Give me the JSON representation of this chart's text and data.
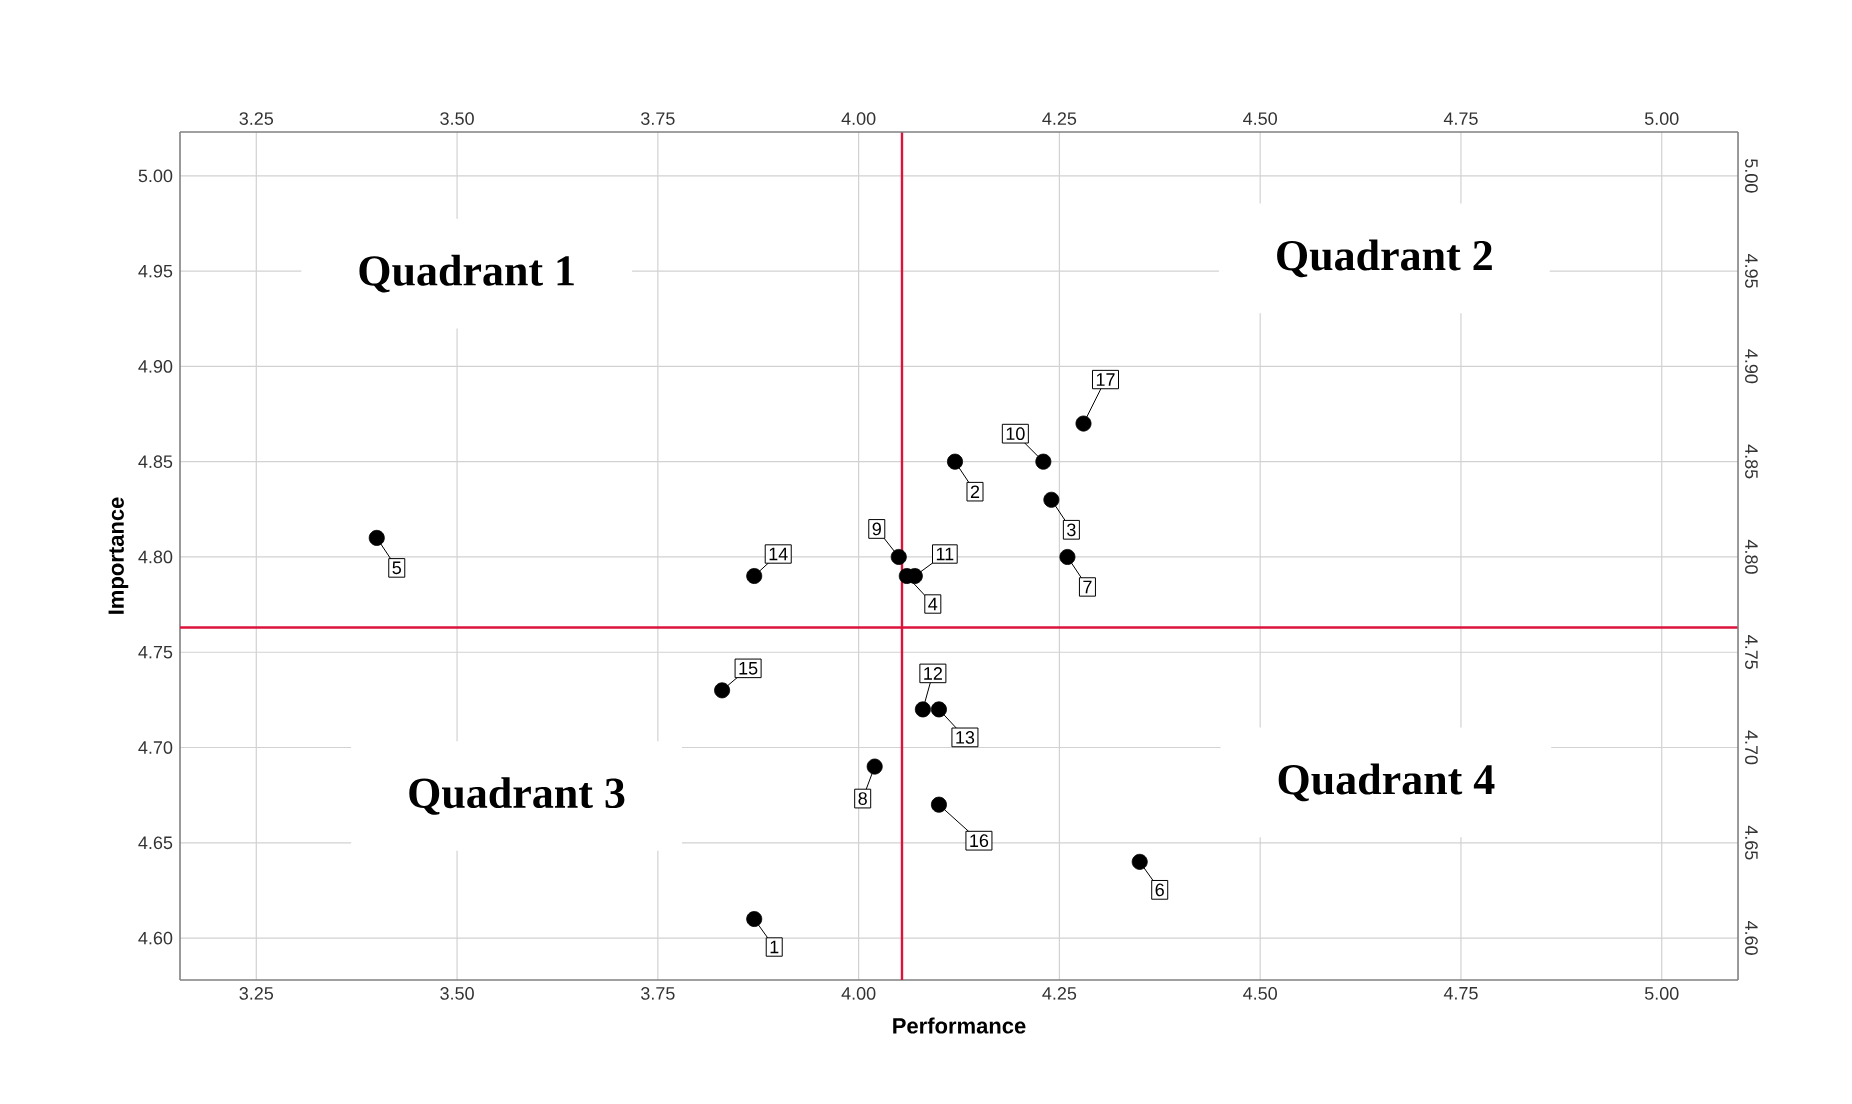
{
  "chart_data": {
    "type": "scatter",
    "xlabel": "Performance",
    "ylabel": "Importance",
    "xlim": [
      3.155,
      5.095
    ],
    "ylim": [
      4.578,
      5.023
    ],
    "x2lim": [
      3.155,
      5.095
    ],
    "y2lim": [
      4.578,
      5.023
    ],
    "xticks": [
      {
        "value": 3.25,
        "label": "3.25"
      },
      {
        "value": 3.5,
        "label": "3.50"
      },
      {
        "value": 3.75,
        "label": "3.75"
      },
      {
        "value": 4.0,
        "label": "4.00"
      },
      {
        "value": 4.25,
        "label": "4.25"
      },
      {
        "value": 4.5,
        "label": "4.50"
      },
      {
        "value": 4.75,
        "label": "4.75"
      },
      {
        "value": 5.0,
        "label": "5.00"
      }
    ],
    "x2ticks": [
      {
        "value": 3.25,
        "label": "3.25"
      },
      {
        "value": 3.5,
        "label": "3.50"
      },
      {
        "value": 3.75,
        "label": "3.75"
      },
      {
        "value": 4.0,
        "label": "4.00"
      },
      {
        "value": 4.25,
        "label": "4.25"
      },
      {
        "value": 4.5,
        "label": "4.50"
      },
      {
        "value": 4.75,
        "label": "4.75"
      },
      {
        "value": 5.0,
        "label": "5.00"
      }
    ],
    "yticks": [
      {
        "value": 4.6,
        "label": "4.60"
      },
      {
        "value": 4.65,
        "label": "4.65"
      },
      {
        "value": 4.7,
        "label": "4.70"
      },
      {
        "value": 4.75,
        "label": "4.75"
      },
      {
        "value": 4.8,
        "label": "4.80"
      },
      {
        "value": 4.85,
        "label": "4.85"
      },
      {
        "value": 4.9,
        "label": "4.90"
      },
      {
        "value": 4.95,
        "label": "4.95"
      },
      {
        "value": 5.0,
        "label": "5.00"
      }
    ],
    "y2ticks": [
      {
        "value": 4.6,
        "label": "4.60"
      },
      {
        "value": 4.65,
        "label": "4.65"
      },
      {
        "value": 4.7,
        "label": "4.70"
      },
      {
        "value": 4.75,
        "label": "4.75"
      },
      {
        "value": 4.8,
        "label": "4.80"
      },
      {
        "value": 4.85,
        "label": "4.85"
      },
      {
        "value": 4.9,
        "label": "4.90"
      },
      {
        "value": 4.95,
        "label": "4.95"
      },
      {
        "value": 5.0,
        "label": "5.00"
      }
    ],
    "grid": true,
    "series": [
      {
        "color": "#000000",
        "x": [
          3.87,
          4.12,
          4.24,
          4.06,
          3.4,
          4.35,
          4.26,
          4.02,
          4.05,
          4.23,
          4.07,
          4.08,
          4.1,
          3.87,
          3.83,
          4.1,
          4.28
        ],
        "values": [
          4.61,
          4.85,
          4.83,
          4.79,
          4.81,
          4.64,
          4.8,
          4.69,
          4.8,
          4.85,
          4.79,
          4.72,
          4.72,
          4.79,
          4.73,
          4.67,
          4.87
        ]
      }
    ],
    "ref_lines": [
      {
        "axis": "x",
        "value": 4.054,
        "color": "#dc143c"
      },
      {
        "axis": "y",
        "value": 4.763,
        "color": "#dc143c"
      }
    ],
    "annotations": [
      "Quadrant 1",
      "Quadrant 2",
      "Quadrant 3",
      "Quadrant 4",
      {
        "text": "1",
        "x": 3.87,
        "y": 4.61
      },
      {
        "text": "2",
        "x": 4.12,
        "y": 4.85
      },
      {
        "text": "3",
        "x": 4.24,
        "y": 4.83
      },
      {
        "text": "4",
        "x": 4.06,
        "y": 4.79
      },
      {
        "text": "5",
        "x": 3.4,
        "y": 4.81
      },
      {
        "text": "6",
        "x": 4.35,
        "y": 4.64
      },
      {
        "text": "7",
        "x": 4.26,
        "y": 4.8
      },
      {
        "text": "8",
        "x": 4.02,
        "y": 4.69
      },
      {
        "text": "9",
        "x": 4.05,
        "y": 4.8
      },
      {
        "text": "10",
        "x": 4.23,
        "y": 4.85
      },
      {
        "text": "11",
        "x": 4.07,
        "y": 4.79
      },
      {
        "text": "12",
        "x": 4.08,
        "y": 4.72
      },
      {
        "text": "13",
        "x": 4.1,
        "y": 4.72
      },
      {
        "text": "14",
        "x": 3.87,
        "y": 4.79
      },
      {
        "text": "15",
        "x": 3.83,
        "y": 4.73
      },
      {
        "text": "16",
        "x": 4.1,
        "y": 4.67
      },
      {
        "text": "17",
        "x": 4.28,
        "y": 4.87
      }
    ]
  }
}
